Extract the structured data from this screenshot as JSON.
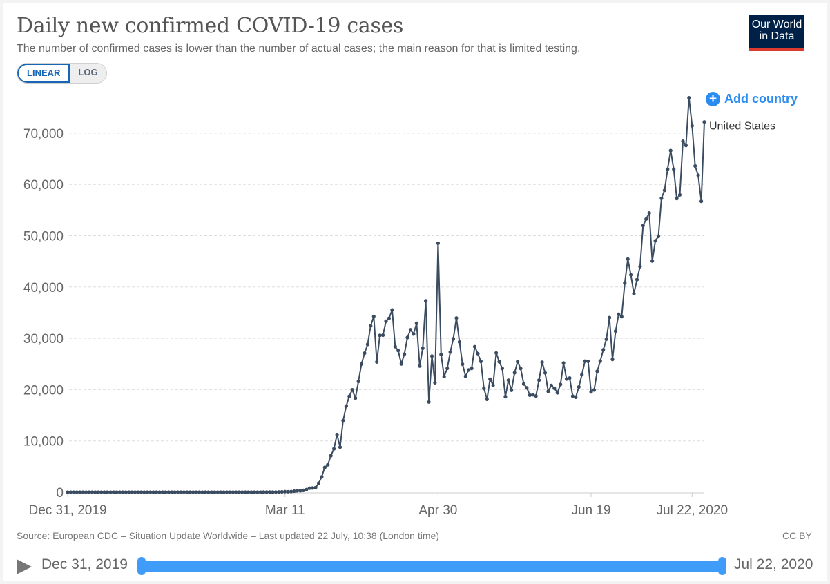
{
  "header": {
    "title": "Daily new confirmed COVID-19 cases",
    "subtitle": "The number of confirmed cases is lower than the number of actual cases; the main reason for that is limited testing.",
    "logo_line1": "Our World",
    "logo_line2": "in Data"
  },
  "scale_toggle": {
    "linear_label": "LINEAR",
    "log_label": "LOG",
    "selected": "LINEAR"
  },
  "add_country_label": "Add country",
  "footer": {
    "source": "Source: European CDC – Situation Update Worldwide – Last updated 22 July, 10:38 (London time)",
    "license": "CC BY"
  },
  "timeline": {
    "start_label": "Dec 31, 2019",
    "end_label": "Jul 22, 2020",
    "start_fraction": 0,
    "end_fraction": 1
  },
  "colors": {
    "series": "#3b4b60",
    "accent": "#2a8cf0",
    "logo_bg": "#002147",
    "logo_bar": "#dc3a2e"
  },
  "chart_data": {
    "type": "line",
    "title": "Daily new confirmed COVID-19 cases",
    "xlabel": "",
    "ylabel": "",
    "x_start": "2019-12-31",
    "x_end": "2020-07-22",
    "x_ticks": [
      {
        "label": "Dec 31, 2019",
        "day": 0
      },
      {
        "label": "Mar 11",
        "day": 71
      },
      {
        "label": "Apr 30",
        "day": 121
      },
      {
        "label": "Jun 19",
        "day": 171
      },
      {
        "label": "Jul 22, 2020",
        "day": 204
      }
    ],
    "y_ticks": [
      {
        "label": "0",
        "value": 0
      },
      {
        "label": "10,000",
        "value": 10000
      },
      {
        "label": "20,000",
        "value": 20000
      },
      {
        "label": "30,000",
        "value": 30000
      },
      {
        "label": "40,000",
        "value": 40000
      },
      {
        "label": "50,000",
        "value": 50000
      },
      {
        "label": "60,000",
        "value": 60000
      },
      {
        "label": "70,000",
        "value": 70000
      }
    ],
    "ylim": [
      0,
      78000
    ],
    "grid": true,
    "series": [
      {
        "name": "United States",
        "values": [
          0,
          0,
          0,
          0,
          0,
          0,
          0,
          0,
          0,
          0,
          0,
          0,
          0,
          0,
          0,
          0,
          0,
          0,
          0,
          0,
          0,
          1,
          0,
          1,
          0,
          0,
          1,
          0,
          0,
          0,
          0,
          1,
          1,
          0,
          0,
          0,
          0,
          0,
          0,
          0,
          0,
          0,
          0,
          0,
          0,
          0,
          0,
          0,
          0,
          0,
          0,
          0,
          0,
          0,
          0,
          0,
          0,
          0,
          0,
          0,
          0,
          0,
          3,
          5,
          7,
          7,
          12,
          14,
          22,
          34,
          74,
          105,
          95,
          121,
          200,
          271,
          287,
          351,
          511,
          777,
          823,
          887,
          1766,
          2988,
          4835,
          5374,
          7123,
          8459,
          11236,
          8789,
          13963,
          16797,
          18695,
          19979,
          18360,
          21595,
          24998,
          27103,
          28819,
          32425,
          34272,
          25398,
          30561,
          30613,
          33323,
          33901,
          35527,
          28391,
          27620,
          25023,
          26922,
          30148,
          31667,
          30833,
          32922,
          24601,
          28065,
          37289,
          17588,
          26543,
          21352,
          48529,
          26857,
          22541,
          24132,
          27326,
          29917,
          33955,
          29288,
          24972,
          22593,
          23841,
          24128,
          28369,
          27015,
          25501,
          20258,
          18117,
          22048,
          20861,
          27143,
          25434,
          24147,
          18621,
          21841,
          19885,
          23288,
          25434,
          24125,
          21100,
          20350,
          18929,
          19000,
          18758,
          21844,
          25337,
          23262,
          19669,
          20801,
          20286,
          19387,
          21023,
          25181,
          22070,
          22267,
          18721,
          18521,
          20529,
          22914,
          25540,
          25530,
          19563,
          19931,
          23572,
          25577,
          27762,
          29835,
          34042,
          25896,
          31404,
          34692,
          34222,
          40778,
          45456,
          42367,
          38719,
          41443,
          44001,
          51985,
          53259,
          54427,
          45062,
          49022,
          49868,
          57296,
          58861,
          62970,
          66602,
          62963,
          57236,
          57970,
          68420,
          67600,
          76907,
          71434,
          63600,
          61795,
          56719,
          72183
        ]
      }
    ]
  }
}
